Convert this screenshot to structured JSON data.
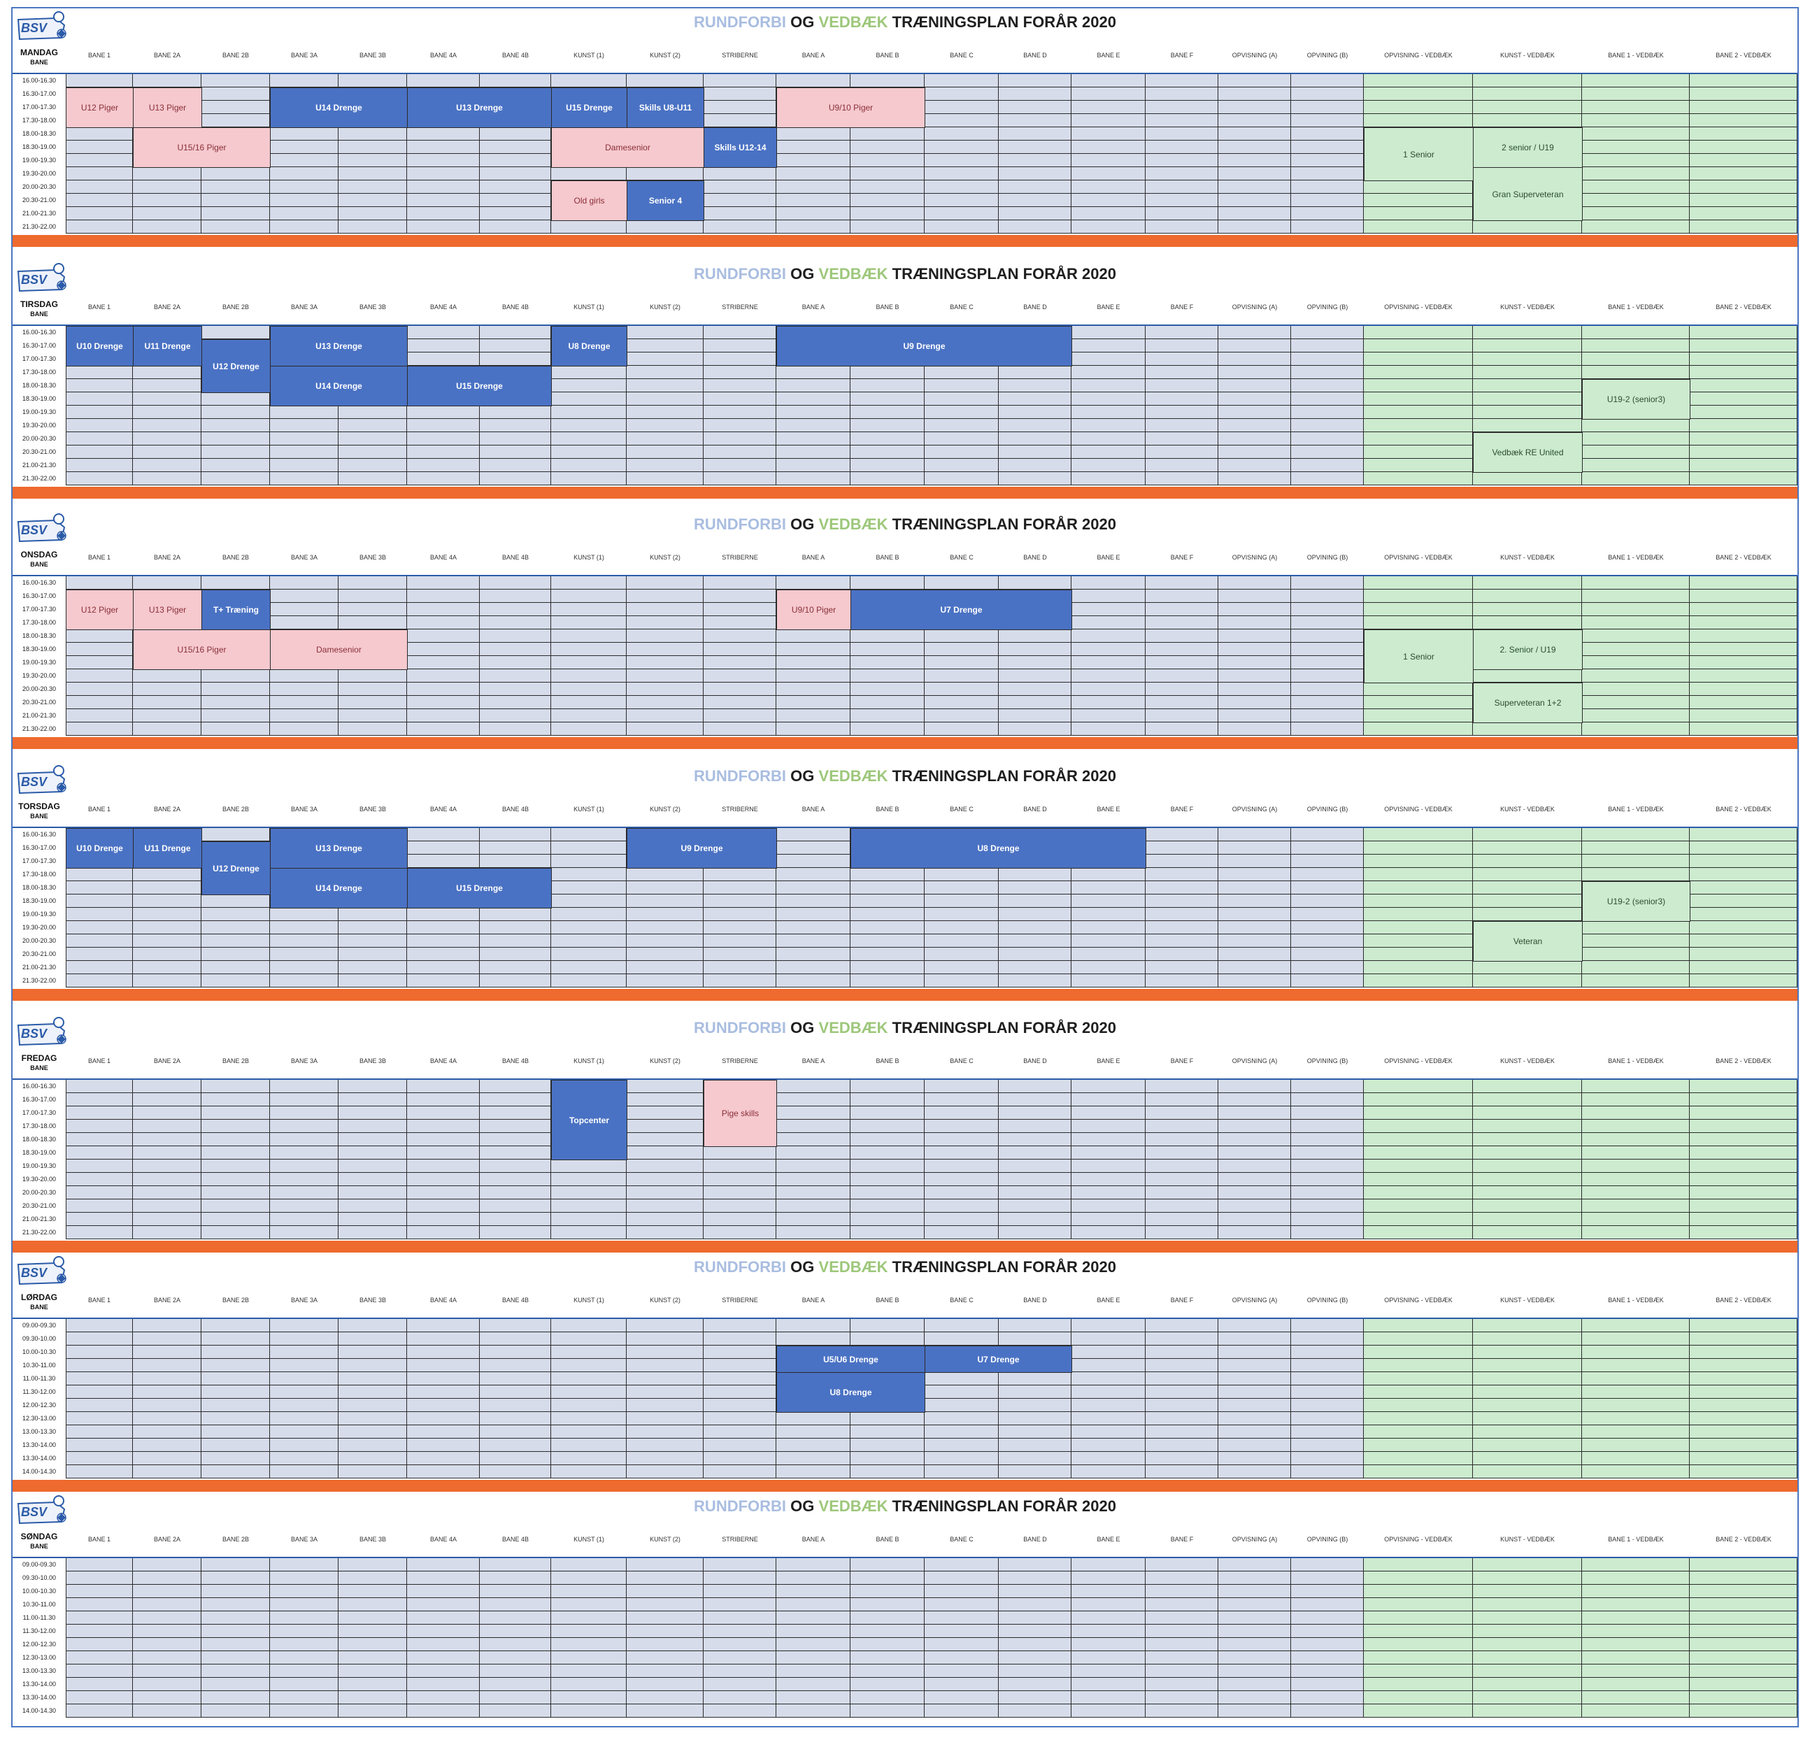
{
  "title": {
    "part1": "RUNDFORBI",
    "part2": "OG",
    "part3": "VEDBÆK",
    "part4": "TRÆNINGSPLAN FORÅR 2020"
  },
  "logo_text": "BSV",
  "bane_label": "BANE",
  "columns": [
    "BANE 1",
    "BANE 2A",
    "BANE 2B",
    "BANE 3A",
    "BANE 3B",
    "BANE 4A",
    "BANE 4B",
    "KUNST (1)",
    "KUNST (2)",
    "STRIBERNE",
    "BANE A",
    "BANE B",
    "BANE C",
    "BANE D",
    "BANE E",
    "BANE F",
    "OPVISNING (A)",
    "OPVINING (B)",
    "OPVISNING - VEDBÆK",
    "KUNST - VEDBÆK",
    "BANE 1 - VEDBÆK",
    "BANE 2 - VEDBÆK"
  ],
  "weekday_times": [
    "16.00-16.30",
    "16.30-17.00",
    "17.00-17.30",
    "17.30-18.00",
    "18.00-18.30",
    "18.30-19.00",
    "19.00-19.30",
    "19.30-20.00",
    "20.00-20.30",
    "20.30-21.00",
    "21.00-21.30",
    "21.30-22.00"
  ],
  "weekend_times": [
    "09.00-09.30",
    "09.30-10.00",
    "10.00-10.30",
    "10.30-11.00",
    "11.00-11.30",
    "11.30-12.00",
    "12.00-12.30",
    "12.30-13.00",
    "13.00-13.30",
    "13.30-14.00",
    "13.30-14.00",
    "14.00-14.30"
  ],
  "colors": {
    "blue_team": "#4a72c4",
    "pink_team": "#f6c9cf",
    "green_area": "#ccebcf",
    "grid_cell": "#d6dcea",
    "separator": "#ef6a2e"
  },
  "days": [
    {
      "name": "MANDAG",
      "times": "weekday",
      "blocks": [
        {
          "text": "U12 Piger",
          "type": "p",
          "col": 0,
          "span": 1,
          "row": 1,
          "rows": 3
        },
        {
          "text": "U13 Piger",
          "type": "p",
          "col": 1,
          "span": 1,
          "row": 1,
          "rows": 3
        },
        {
          "text": "U14 Drenge",
          "type": "b",
          "col": 3,
          "span": 2,
          "row": 1,
          "rows": 3
        },
        {
          "text": "U13 Drenge",
          "type": "b",
          "col": 5,
          "span": 2,
          "row": 1,
          "rows": 3
        },
        {
          "text": "U15 Drenge",
          "type": "b",
          "col": 7,
          "span": 1,
          "row": 1,
          "rows": 3
        },
        {
          "text": "Skills U8-U11",
          "type": "b",
          "col": 8,
          "span": 1,
          "row": 1,
          "rows": 3
        },
        {
          "text": "U9/10 Piger",
          "type": "p",
          "col": 10,
          "span": 2,
          "row": 1,
          "rows": 3
        },
        {
          "text": "U15/16 Piger",
          "type": "p",
          "col": 1,
          "span": 2,
          "row": 4,
          "rows": 3
        },
        {
          "text": "Damesenior",
          "type": "p",
          "col": 7,
          "span": 2,
          "row": 4,
          "rows": 3
        },
        {
          "text": "Skills U12-14",
          "type": "b",
          "col": 9,
          "span": 1,
          "row": 4,
          "rows": 3
        },
        {
          "text": "Old girls",
          "type": "p",
          "col": 7,
          "span": 1,
          "row": 8,
          "rows": 3
        },
        {
          "text": "Senior 4",
          "type": "b",
          "col": 8,
          "span": 1,
          "row": 8,
          "rows": 3
        },
        {
          "text": "1 Senior",
          "type": "g",
          "col": 18,
          "span": 1,
          "row": 4,
          "rows": 4
        },
        {
          "text": "2 senior / U19",
          "type": "g",
          "col": 19,
          "span": 1,
          "row": 4,
          "rows": 3
        },
        {
          "text": "Gran Superveteran",
          "type": "g",
          "col": 19,
          "span": 1,
          "row": 7,
          "rows": 4
        }
      ]
    },
    {
      "name": "TIRSDAG",
      "times": "weekday",
      "blocks": [
        {
          "text": "U10 Drenge",
          "type": "b",
          "col": 0,
          "span": 1,
          "row": 0,
          "rows": 3
        },
        {
          "text": "U11 Drenge",
          "type": "b",
          "col": 1,
          "span": 1,
          "row": 0,
          "rows": 3
        },
        {
          "text": "U12 Drenge",
          "type": "b",
          "col": 2,
          "span": 1,
          "row": 1,
          "rows": 4
        },
        {
          "text": "U13 Drenge",
          "type": "b",
          "col": 3,
          "span": 2,
          "row": 0,
          "rows": 3
        },
        {
          "text": "U8 Drenge",
          "type": "b",
          "col": 7,
          "span": 1,
          "row": 0,
          "rows": 3
        },
        {
          "text": "U9 Drenge",
          "type": "b",
          "col": 10,
          "span": 4,
          "row": 0,
          "rows": 3
        },
        {
          "text": "U14 Drenge",
          "type": "b",
          "col": 3,
          "span": 2,
          "row": 3,
          "rows": 3
        },
        {
          "text": "U15 Drenge",
          "type": "b",
          "col": 5,
          "span": 2,
          "row": 3,
          "rows": 3
        },
        {
          "text": "U19-2 (senior3)",
          "type": "g",
          "col": 20,
          "span": 1,
          "row": 4,
          "rows": 3
        },
        {
          "text": "Vedbæk RE United",
          "type": "g",
          "col": 19,
          "span": 1,
          "row": 8,
          "rows": 3
        }
      ]
    },
    {
      "name": "ONSDAG",
      "times": "weekday",
      "blocks": [
        {
          "text": "U12 Piger",
          "type": "p",
          "col": 0,
          "span": 1,
          "row": 1,
          "rows": 3
        },
        {
          "text": "U13 Piger",
          "type": "p",
          "col": 1,
          "span": 1,
          "row": 1,
          "rows": 3
        },
        {
          "text": "T+ Træning",
          "type": "b",
          "col": 2,
          "span": 1,
          "row": 1,
          "rows": 3
        },
        {
          "text": "U9/10 Piger",
          "type": "p",
          "col": 10,
          "span": 1,
          "row": 1,
          "rows": 3
        },
        {
          "text": "U7 Drenge",
          "type": "b",
          "col": 11,
          "span": 3,
          "row": 1,
          "rows": 3
        },
        {
          "text": "U15/16 Piger",
          "type": "p",
          "col": 1,
          "span": 2,
          "row": 4,
          "rows": 3
        },
        {
          "text": "Damesenior",
          "type": "p",
          "col": 3,
          "span": 2,
          "row": 4,
          "rows": 3
        },
        {
          "text": "1 Senior",
          "type": "g",
          "col": 18,
          "span": 1,
          "row": 4,
          "rows": 4
        },
        {
          "text": "2. Senior / U19",
          "type": "g",
          "col": 19,
          "span": 1,
          "row": 4,
          "rows": 3
        },
        {
          "text": "Superveteran 1+2",
          "type": "g",
          "col": 19,
          "span": 1,
          "row": 8,
          "rows": 3
        }
      ]
    },
    {
      "name": "TORSDAG",
      "times": "weekday",
      "blocks": [
        {
          "text": "U10 Drenge",
          "type": "b",
          "col": 0,
          "span": 1,
          "row": 0,
          "rows": 3
        },
        {
          "text": "U11 Drenge",
          "type": "b",
          "col": 1,
          "span": 1,
          "row": 0,
          "rows": 3
        },
        {
          "text": "U12 Drenge",
          "type": "b",
          "col": 2,
          "span": 1,
          "row": 1,
          "rows": 4
        },
        {
          "text": "U13 Drenge",
          "type": "b",
          "col": 3,
          "span": 2,
          "row": 0,
          "rows": 3
        },
        {
          "text": "U9 Drenge",
          "type": "b",
          "col": 8,
          "span": 2,
          "row": 0,
          "rows": 3
        },
        {
          "text": "U8 Drenge",
          "type": "b",
          "col": 11,
          "span": 4,
          "row": 0,
          "rows": 3
        },
        {
          "text": "U14 Drenge",
          "type": "b",
          "col": 3,
          "span": 2,
          "row": 3,
          "rows": 3
        },
        {
          "text": "U15 Drenge",
          "type": "b",
          "col": 5,
          "span": 2,
          "row": 3,
          "rows": 3
        },
        {
          "text": "U19-2 (senior3)",
          "type": "g",
          "col": 20,
          "span": 1,
          "row": 4,
          "rows": 3
        },
        {
          "text": "Veteran",
          "type": "g",
          "col": 19,
          "span": 1,
          "row": 7,
          "rows": 3
        }
      ]
    },
    {
      "name": "FREDAG",
      "times": "weekday",
      "blocks": [
        {
          "text": "Topcenter",
          "type": "b",
          "col": 7,
          "span": 1,
          "row": 0,
          "rows": 6
        },
        {
          "text": "Pige skills",
          "type": "p",
          "col": 9,
          "span": 1,
          "row": 0,
          "rows": 5
        }
      ]
    },
    {
      "name": "LØRDAG",
      "times": "weekend",
      "blocks": [
        {
          "text": "U5/U6 Drenge",
          "type": "b",
          "col": 10,
          "span": 2,
          "row": 2,
          "rows": 2
        },
        {
          "text": "U7 Drenge",
          "type": "b",
          "col": 12,
          "span": 2,
          "row": 2,
          "rows": 2
        },
        {
          "text": "U8 Drenge",
          "type": "b",
          "col": 10,
          "span": 2,
          "row": 4,
          "rows": 3
        }
      ]
    },
    {
      "name": "SØNDAG",
      "times": "weekend",
      "blocks": []
    }
  ]
}
